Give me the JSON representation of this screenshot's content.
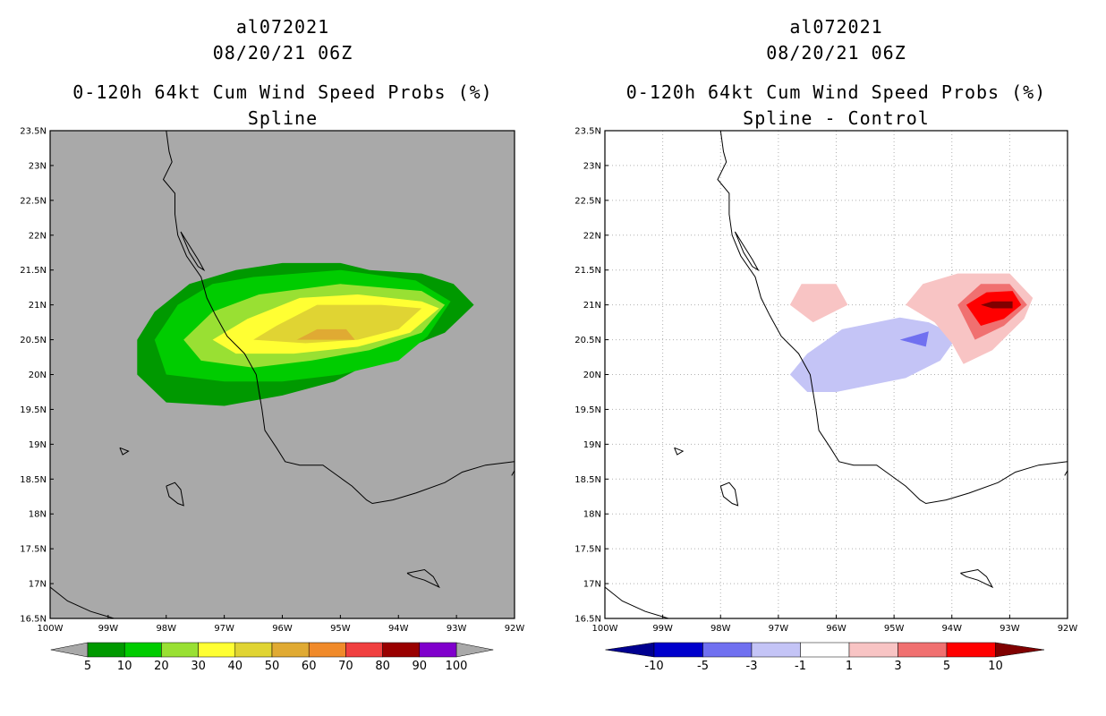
{
  "left": {
    "title_lines": [
      "al072021",
      "08/20/21 06Z",
      "0-120h 64kt Cum Wind Speed Probs (%)",
      "Spline"
    ],
    "background_color": "#a9a9a9",
    "colorbar": {
      "colors": [
        "#009900",
        "#00cc00",
        "#99e033",
        "#ffff33",
        "#e0d433",
        "#e0aa33",
        "#f08a2a",
        "#f04040",
        "#990000",
        "#8000cc"
      ],
      "labels": [
        "5",
        "10",
        "20",
        "30",
        "40",
        "50",
        "60",
        "70",
        "80",
        "90",
        "100"
      ],
      "end_color": "#a9a9a9"
    }
  },
  "right": {
    "title_lines": [
      "al072021",
      "08/20/21 06Z",
      "0-120h 64kt Cum Wind Speed Probs (%)",
      "Spline - Control"
    ],
    "background_color": "#ffffff",
    "colorbar": {
      "colors": [
        "#0000cc",
        "#7070f0",
        "#c4c4f6",
        "#ffffff",
        "#f8c4c4",
        "#f07070",
        "#ff0000"
      ],
      "labels": [
        "-10",
        "-5",
        "-3",
        "-1",
        "1",
        "3",
        "5",
        "10"
      ],
      "low_end_color": "#000090",
      "high_end_color": "#800000"
    }
  },
  "chart_data": [
    {
      "type": "heatmap",
      "title": "al072021 08/20/21 06Z 0-120h 64kt Cum Wind Speed Probs (%) Spline",
      "xaxis": {
        "range": [
          -100,
          -92
        ],
        "ticks": [
          "100W",
          "99W",
          "98W",
          "97W",
          "96W",
          "95W",
          "94W",
          "93W",
          "92W"
        ]
      },
      "yaxis": {
        "range": [
          16.5,
          23.5
        ],
        "ticks": [
          "16.5N",
          "17N",
          "17.5N",
          "18N",
          "18.5N",
          "19N",
          "19.5N",
          "20N",
          "20.5N",
          "21N",
          "21.5N",
          "22N",
          "22.5N",
          "23N",
          "23.5N"
        ]
      },
      "grid": false,
      "contours": [
        {
          "level": 5,
          "color": "#009900",
          "points": [
            [
              -98.5,
              20.5
            ],
            [
              -98.2,
              20.9
            ],
            [
              -97.6,
              21.3
            ],
            [
              -96.8,
              21.5
            ],
            [
              -96.0,
              21.6
            ],
            [
              -95.0,
              21.6
            ],
            [
              -94.5,
              21.5
            ],
            [
              -93.6,
              21.45
            ],
            [
              -93.05,
              21.3
            ],
            [
              -92.7,
              21.0
            ],
            [
              -93.2,
              20.6
            ],
            [
              -94.4,
              20.2
            ],
            [
              -95.1,
              19.9
            ],
            [
              -96.0,
              19.7
            ],
            [
              -97.0,
              19.55
            ],
            [
              -98.0,
              19.6
            ],
            [
              -98.5,
              20.0
            ]
          ]
        },
        {
          "level": 10,
          "color": "#00cc00",
          "points": [
            [
              -98.2,
              20.5
            ],
            [
              -97.8,
              21.0
            ],
            [
              -97.2,
              21.3
            ],
            [
              -96.5,
              21.4
            ],
            [
              -95.0,
              21.5
            ],
            [
              -93.7,
              21.35
            ],
            [
              -93.1,
              21.05
            ],
            [
              -93.5,
              20.55
            ],
            [
              -94.0,
              20.2
            ],
            [
              -95.0,
              20.0
            ],
            [
              -96.0,
              19.9
            ],
            [
              -97.0,
              19.9
            ],
            [
              -98.0,
              20.0
            ]
          ]
        },
        {
          "level": 20,
          "color": "#99e033",
          "points": [
            [
              -97.7,
              20.5
            ],
            [
              -97.2,
              20.9
            ],
            [
              -96.4,
              21.15
            ],
            [
              -95.0,
              21.3
            ],
            [
              -93.6,
              21.2
            ],
            [
              -93.2,
              21.0
            ],
            [
              -93.6,
              20.6
            ],
            [
              -94.5,
              20.35
            ],
            [
              -95.5,
              20.2
            ],
            [
              -96.5,
              20.1
            ],
            [
              -97.4,
              20.2
            ]
          ]
        },
        {
          "level": 30,
          "color": "#ffff33",
          "points": [
            [
              -97.2,
              20.5
            ],
            [
              -96.6,
              20.8
            ],
            [
              -95.7,
              21.1
            ],
            [
              -94.7,
              21.15
            ],
            [
              -93.6,
              21.05
            ],
            [
              -93.3,
              20.95
            ],
            [
              -93.8,
              20.6
            ],
            [
              -94.7,
              20.4
            ],
            [
              -95.8,
              20.3
            ],
            [
              -96.8,
              20.3
            ]
          ]
        },
        {
          "level": 40,
          "color": "#e0d433",
          "points": [
            [
              -96.5,
              20.5
            ],
            [
              -96.1,
              20.7
            ],
            [
              -95.4,
              21.0
            ],
            [
              -94.3,
              21.0
            ],
            [
              -93.6,
              20.95
            ],
            [
              -94.0,
              20.65
            ],
            [
              -94.7,
              20.5
            ],
            [
              -95.6,
              20.45
            ]
          ]
        },
        {
          "level": 50,
          "color": "#e0aa33",
          "points": [
            [
              -95.75,
              20.5
            ],
            [
              -95.4,
              20.65
            ],
            [
              -94.9,
              20.65
            ],
            [
              -94.75,
              20.5
            ]
          ]
        }
      ]
    },
    {
      "type": "heatmap",
      "title": "al072021 08/20/21 06Z 0-120h 64kt Cum Wind Speed Probs (%) Spline - Control",
      "xaxis": {
        "range": [
          -100,
          -92
        ],
        "ticks": [
          "100W",
          "99W",
          "98W",
          "97W",
          "96W",
          "95W",
          "94W",
          "93W",
          "92W"
        ]
      },
      "yaxis": {
        "range": [
          16.5,
          23.5
        ],
        "ticks": [
          "16.5N",
          "17N",
          "17.5N",
          "18N",
          "18.5N",
          "19N",
          "19.5N",
          "20N",
          "20.5N",
          "21N",
          "21.5N",
          "22N",
          "22.5N",
          "23N",
          "23.5N"
        ]
      },
      "grid": true,
      "contours": [
        {
          "level": 1,
          "color": "#f8c4c4",
          "points": [
            [
              -96.8,
              21.0
            ],
            [
              -96.6,
              21.3
            ],
            [
              -96.0,
              21.3
            ],
            [
              -95.8,
              21.0
            ],
            [
              -96.4,
              20.75
            ]
          ]
        },
        {
          "level": -1,
          "color": "#c4c4f6",
          "points": [
            [
              -96.8,
              20.0
            ],
            [
              -96.5,
              20.3
            ],
            [
              -95.9,
              20.65
            ],
            [
              -94.9,
              20.82
            ],
            [
              -94.4,
              20.75
            ],
            [
              -93.9,
              20.55
            ],
            [
              -94.2,
              20.2
            ],
            [
              -94.8,
              19.95
            ],
            [
              -96.0,
              19.75
            ],
            [
              -96.5,
              19.75
            ]
          ]
        },
        {
          "level": -3,
          "color": "#7070f0",
          "points": [
            [
              -94.9,
              20.5
            ],
            [
              -94.4,
              20.62
            ],
            [
              -94.45,
              20.4
            ]
          ]
        },
        {
          "level": 1,
          "color": "#f8c4c4",
          "points": [
            [
              -94.8,
              21.0
            ],
            [
              -94.5,
              21.3
            ],
            [
              -93.9,
              21.45
            ],
            [
              -93.0,
              21.45
            ],
            [
              -92.6,
              21.1
            ],
            [
              -92.75,
              20.8
            ],
            [
              -93.3,
              20.35
            ],
            [
              -93.8,
              20.15
            ],
            [
              -94.0,
              20.45
            ],
            [
              -94.3,
              20.75
            ]
          ]
        },
        {
          "level": 3,
          "color": "#f07070",
          "points": [
            [
              -93.9,
              21.0
            ],
            [
              -93.5,
              21.3
            ],
            [
              -93.0,
              21.3
            ],
            [
              -92.7,
              21.0
            ],
            [
              -93.1,
              20.7
            ],
            [
              -93.6,
              20.5
            ]
          ]
        },
        {
          "level": 5,
          "color": "#ff0000",
          "points": [
            [
              -93.75,
              21.0
            ],
            [
              -93.4,
              21.18
            ],
            [
              -92.95,
              21.2
            ],
            [
              -92.8,
              21.0
            ],
            [
              -93.1,
              20.8
            ],
            [
              -93.5,
              20.7
            ]
          ]
        },
        {
          "level": 10,
          "color": "#800000",
          "points": [
            [
              -93.5,
              21.0
            ],
            [
              -93.3,
              21.05
            ],
            [
              -92.95,
              21.05
            ],
            [
              -92.95,
              20.95
            ],
            [
              -93.3,
              20.95
            ]
          ]
        }
      ]
    }
  ],
  "coastline": [
    [
      [
        -98.0,
        23.5
      ],
      [
        -97.95,
        23.2
      ],
      [
        -97.9,
        23.05
      ],
      [
        -98.05,
        22.8
      ],
      [
        -97.85,
        22.6
      ],
      [
        -97.85,
        22.3
      ],
      [
        -97.8,
        22.0
      ],
      [
        -97.65,
        21.7
      ],
      [
        -97.4,
        21.4
      ],
      [
        -97.3,
        21.1
      ],
      [
        -97.15,
        20.85
      ],
      [
        -96.95,
        20.55
      ],
      [
        -96.65,
        20.3
      ],
      [
        -96.45,
        20.0
      ],
      [
        -96.4,
        19.75
      ],
      [
        -96.35,
        19.5
      ],
      [
        -96.3,
        19.2
      ],
      [
        -96.1,
        18.95
      ],
      [
        -95.95,
        18.75
      ],
      [
        -95.7,
        18.7
      ],
      [
        -95.3,
        18.7
      ],
      [
        -95.05,
        18.55
      ],
      [
        -94.8,
        18.4
      ],
      [
        -94.55,
        18.2
      ],
      [
        -94.45,
        18.15
      ],
      [
        -94.1,
        18.2
      ],
      [
        -93.7,
        18.3
      ],
      [
        -93.2,
        18.45
      ],
      [
        -92.9,
        18.6
      ],
      [
        -92.5,
        18.7
      ],
      [
        -92.0,
        18.75
      ]
    ],
    [
      [
        -100.0,
        16.95
      ],
      [
        -99.7,
        16.75
      ],
      [
        -99.3,
        16.6
      ],
      [
        -98.9,
        16.5
      ]
    ],
    [
      [
        -92.05,
        18.55
      ],
      [
        -92.0,
        18.62
      ]
    ]
  ],
  "lagoon": [
    [
      -97.75,
      22.05
    ],
    [
      -97.6,
      21.75
    ],
    [
      -97.45,
      21.55
    ],
    [
      -97.35,
      21.5
    ],
    [
      -97.45,
      21.65
    ],
    [
      -97.6,
      21.85
    ],
    [
      -97.75,
      22.05
    ]
  ],
  "islands": [
    [
      [
        -98.0,
        18.4
      ],
      [
        -97.85,
        18.45
      ],
      [
        -97.75,
        18.35
      ],
      [
        -97.7,
        18.12
      ],
      [
        -97.8,
        18.15
      ],
      [
        -97.95,
        18.25
      ],
      [
        -98.0,
        18.4
      ]
    ],
    [
      [
        -98.8,
        18.95
      ],
      [
        -98.65,
        18.9
      ],
      [
        -98.75,
        18.85
      ],
      [
        -98.8,
        18.95
      ]
    ],
    [
      [
        -93.85,
        17.15
      ],
      [
        -93.55,
        17.2
      ],
      [
        -93.4,
        17.1
      ],
      [
        -93.3,
        16.95
      ],
      [
        -93.55,
        17.05
      ],
      [
        -93.75,
        17.1
      ],
      [
        -93.85,
        17.15
      ]
    ]
  ]
}
